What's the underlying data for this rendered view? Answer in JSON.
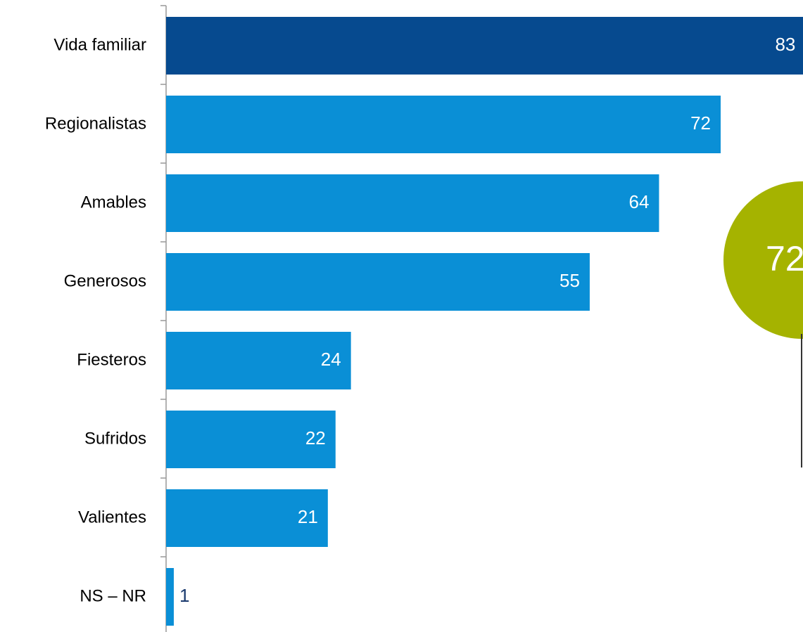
{
  "chart_data": {
    "type": "bar",
    "orientation": "horizontal",
    "categories": [
      "Vida familiar",
      "Regionalistas",
      "Amables",
      "Generosos",
      "Fiesteros",
      "Sufridos",
      "Valientes",
      "NS – NR"
    ],
    "values": [
      83,
      72,
      64,
      55,
      24,
      22,
      21,
      1
    ],
    "colors": [
      "#064a8f",
      "#0a8fd6",
      "#0a8fd6",
      "#0a8fd6",
      "#0a8fd6",
      "#0a8fd6",
      "#0a8fd6",
      "#0a8fd6"
    ],
    "xlim": [
      0,
      90
    ],
    "annotation": "72"
  }
}
